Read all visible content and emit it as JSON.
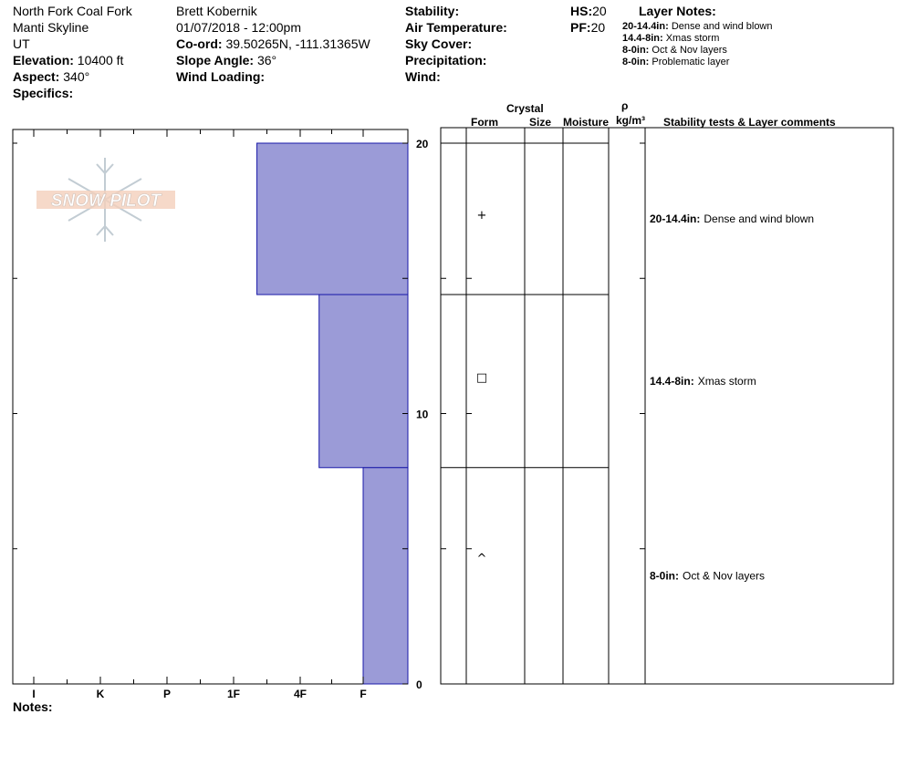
{
  "header": {
    "location": "North Fork Coal Fork",
    "range": "Manti Skyline",
    "state": "UT",
    "elevation_label": "Elevation:",
    "elevation_value": "10400 ft",
    "aspect_label": "Aspect:",
    "aspect_value": "340°",
    "specifics_label": "Specifics:",
    "observer": "Brett Kobernik",
    "datetime": "01/07/2018 - 12:00pm",
    "coord_label": "Co-ord:",
    "coord_value": "39.50265N, -111.31365W",
    "slope_label": "Slope Angle:",
    "slope_value": "36°",
    "wind_loading_label": "Wind Loading:",
    "stability_label": "Stability:",
    "air_temp_label": "Air Temperature:",
    "sky_cover_label": "Sky Cover:",
    "precip_label": "Precipitation:",
    "wind_label": "Wind:",
    "hs_label": "HS:",
    "hs_value": "20",
    "pf_label": "PF:",
    "pf_value": "20",
    "layer_notes_title": "Layer Notes:",
    "layer_notes": [
      {
        "range": "20-14.4in:",
        "text": "Dense and wind blown"
      },
      {
        "range": "14.4-8in:",
        "text": "Xmas storm"
      },
      {
        "range": "8-0in:",
        "text": "Oct & Nov layers"
      },
      {
        "range": "8-0in:",
        "text": "Problematic layer"
      }
    ]
  },
  "logo": {
    "text": "SNOW PILOT"
  },
  "columns": {
    "crystal": "Crystal",
    "form": "Form",
    "size": "Size",
    "moisture": "Moisture",
    "rho": "ρ",
    "density_unit": "kg/m³",
    "comments": "Stability tests & Layer comments"
  },
  "notes_label": "Notes:",
  "colors": {
    "layer_fill": "#9b9bd7",
    "layer_stroke": "#1a1aa8"
  },
  "chart_data": {
    "type": "bar",
    "orientation": "horizontal-depth",
    "y_axis": {
      "min": 0,
      "max": 20,
      "ticks": [
        0,
        10,
        20
      ],
      "unit": "in"
    },
    "x_axis": {
      "categories": [
        "I",
        "K",
        "P",
        "1F",
        "4F",
        "F"
      ],
      "reversed": true
    },
    "layers": [
      {
        "top": 20,
        "bottom": 14.4,
        "hardness": "4F-",
        "hardness_value": 4.35,
        "form_symbol": "+",
        "comment_range": "20-14.4in:",
        "comment": "Dense and wind blown"
      },
      {
        "top": 14.4,
        "bottom": 8,
        "hardness": "F+",
        "hardness_value": 5.3,
        "form_symbol": "□",
        "comment_range": "14.4-8in:",
        "comment": "Xmas storm"
      },
      {
        "top": 8,
        "bottom": 0,
        "hardness": "F",
        "hardness_value": 6,
        "form_symbol": "^",
        "comment_range": "8-0in:",
        "comment": "Oct & Nov layers"
      }
    ]
  }
}
